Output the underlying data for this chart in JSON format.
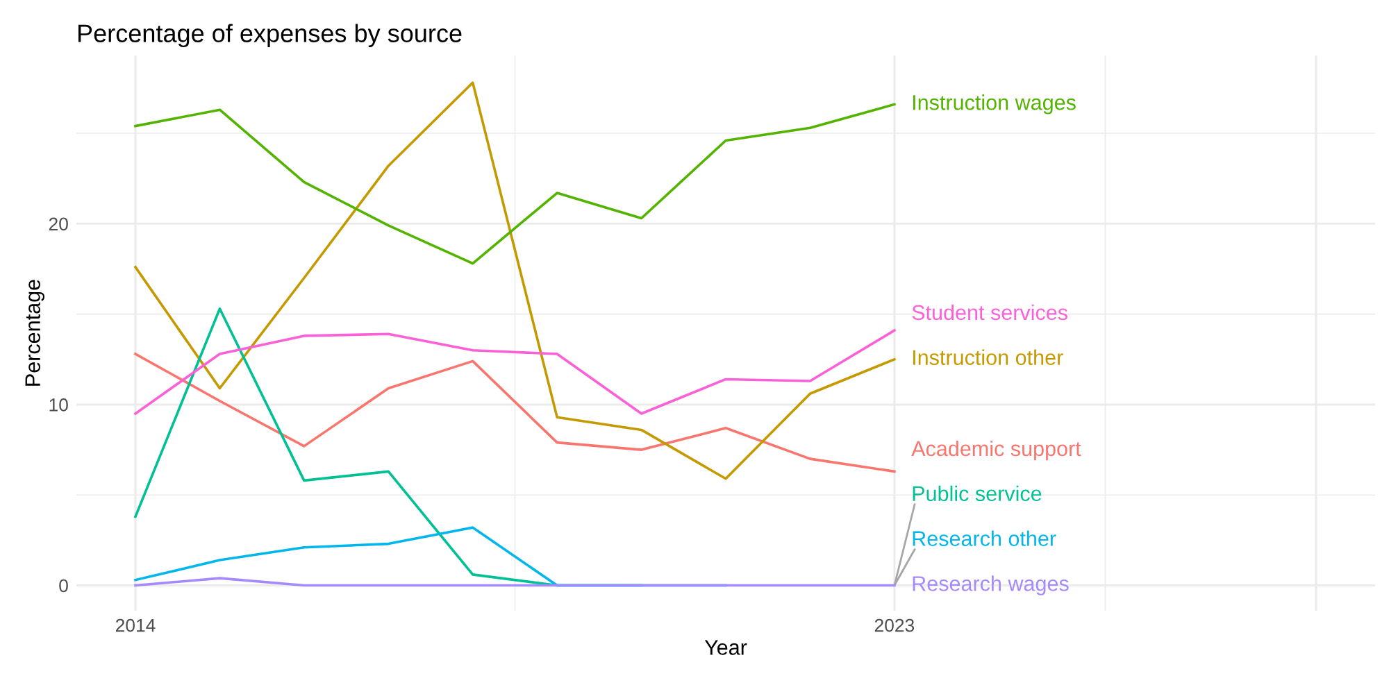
{
  "chart_data": {
    "type": "line",
    "title": "Percentage of expenses by source",
    "xlabel": "Year",
    "ylabel": "Percentage",
    "x": [
      2014,
      2015,
      2016,
      2017,
      2018,
      2019,
      2020,
      2021,
      2022,
      2023
    ],
    "xlim": [
      2013.3,
      2028.7
    ],
    "xticks": [
      2014,
      2023,
      {
        "value": 2028,
        "label": null
      }
    ],
    "ylim": [
      -1.4,
      29.3
    ],
    "yticks": [
      0,
      10,
      20
    ],
    "grid": true,
    "legend": false,
    "series": [
      {
        "name": "Academic support",
        "color": "#f8766d",
        "values": [
          12.8,
          10.2,
          7.7,
          10.9,
          12.4,
          7.9,
          7.5,
          8.7,
          7.0,
          6.3
        ]
      },
      {
        "name": "Instruction other",
        "color": "#c49a00",
        "values": [
          17.6,
          10.9,
          17.0,
          23.2,
          27.8,
          9.3,
          8.6,
          5.9,
          10.6,
          12.5
        ]
      },
      {
        "name": "Instruction wages",
        "color": "#53b400",
        "values": [
          25.4,
          26.3,
          22.3,
          19.9,
          17.8,
          21.7,
          20.3,
          24.6,
          25.3,
          26.6
        ]
      },
      {
        "name": "Public service",
        "color": "#00c094",
        "values": [
          3.8,
          15.3,
          5.8,
          6.3,
          0.6,
          0,
          0,
          null,
          null,
          null
        ]
      },
      {
        "name": "Research other",
        "color": "#00b6eb",
        "values": [
          0.3,
          1.4,
          2.1,
          2.3,
          3.2,
          0,
          0,
          0,
          null,
          null
        ]
      },
      {
        "name": "Research wages",
        "color": "#a58aff",
        "values": [
          0,
          0.4,
          0,
          0,
          0,
          0,
          0,
          0,
          0,
          0
        ]
      },
      {
        "name": "Student services",
        "color": "#fb61d7",
        "values": [
          9.5,
          12.8,
          13.8,
          13.9,
          13.0,
          12.8,
          9.5,
          11.4,
          11.3,
          14.1
        ]
      }
    ]
  }
}
